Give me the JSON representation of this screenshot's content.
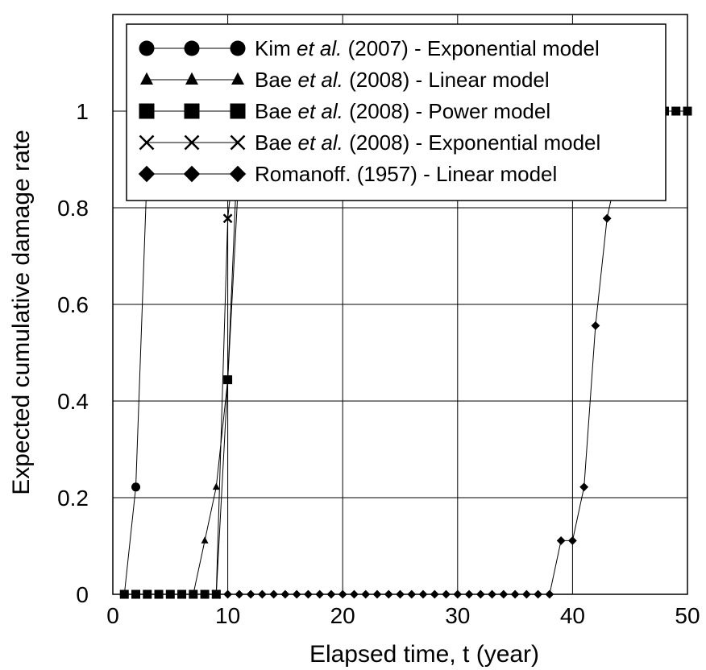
{
  "chart_data": {
    "type": "line",
    "title": "",
    "xlabel": "Elapsed time, t (year)",
    "ylabel": "Expected cumulative damage rate",
    "xlim": [
      0,
      50
    ],
    "ylim": [
      0,
      1.2
    ],
    "xticks": [
      "0",
      "10",
      "20",
      "30",
      "40",
      "50"
    ],
    "yticks": [
      "0",
      "0.2",
      "0.4",
      "0.6",
      "0.8",
      "1"
    ],
    "grid": true,
    "legend_position": "top",
    "series": [
      {
        "name": "Kim et al. (2007) - Exponential model",
        "legend_parts": [
          "Kim ",
          "et al.",
          " (2007) - Exponential model"
        ],
        "marker": "circle",
        "x": [
          1,
          2,
          3,
          4,
          5,
          6,
          7,
          8,
          9,
          10
        ],
        "y": [
          0,
          0.222,
          0.889,
          1,
          1,
          1,
          1,
          1,
          1,
          1
        ]
      },
      {
        "name": "Bae et al. (2008) - Linear model",
        "legend_parts": [
          "Bae ",
          "et al.",
          " (2008) - Linear model"
        ],
        "marker": "triangle",
        "x": [
          1,
          2,
          3,
          4,
          5,
          6,
          7,
          8,
          9,
          10,
          11,
          12
        ],
        "y": [
          0,
          0,
          0,
          0,
          0,
          0,
          0,
          0.111,
          0.222,
          0.444,
          0.889,
          1
        ]
      },
      {
        "name": "Bae et al. (2008) - Power model",
        "legend_parts": [
          "Bae ",
          "et al.",
          " (2008) - Power model"
        ],
        "marker": "square",
        "x": [
          1,
          2,
          3,
          4,
          5,
          6,
          7,
          8,
          9,
          10,
          11,
          12,
          13,
          14,
          15,
          16,
          17,
          18,
          19,
          20,
          21,
          22,
          23,
          24,
          25,
          26,
          27,
          28,
          29,
          30,
          31,
          32,
          33,
          34,
          35,
          36,
          37,
          38,
          39,
          40,
          41,
          42,
          43,
          44,
          45,
          46,
          47,
          48,
          49,
          50
        ],
        "y": [
          0,
          0,
          0,
          0,
          0,
          0,
          0,
          0,
          0,
          0.444,
          1,
          1,
          1,
          1,
          1,
          1,
          1,
          1,
          1,
          1,
          1,
          1,
          1,
          1,
          1,
          1,
          1,
          1,
          1,
          1,
          1,
          1,
          1,
          1,
          1,
          1,
          1,
          1,
          1,
          1,
          1,
          1,
          1,
          1,
          1,
          1,
          1,
          1,
          1,
          1
        ]
      },
      {
        "name": "Bae et al. (2008) - Exponential model",
        "legend_parts": [
          "Bae ",
          "et al.",
          " (2008) - Exponential model"
        ],
        "marker": "cross",
        "x": [
          9,
          10,
          11
        ],
        "y": [
          0,
          0.778,
          1
        ]
      },
      {
        "name": "Romanoff. (1957) - Linear model",
        "legend_parts": [
          "Romanoff. (1957) - Linear model",
          "",
          ""
        ],
        "marker": "diamond",
        "x": [
          10,
          11,
          12,
          13,
          14,
          15,
          16,
          17,
          18,
          19,
          20,
          21,
          22,
          23,
          24,
          25,
          26,
          27,
          28,
          29,
          30,
          31,
          32,
          33,
          34,
          35,
          36,
          37,
          38,
          39,
          40,
          41,
          42,
          43,
          44,
          45
        ],
        "y": [
          0,
          0,
          0,
          0,
          0,
          0,
          0,
          0,
          0,
          0,
          0,
          0,
          0,
          0,
          0,
          0,
          0,
          0,
          0,
          0,
          0,
          0,
          0,
          0,
          0,
          0,
          0,
          0,
          0,
          0.111,
          0.111,
          0.222,
          0.556,
          0.778,
          0.889,
          1
        ]
      }
    ]
  }
}
